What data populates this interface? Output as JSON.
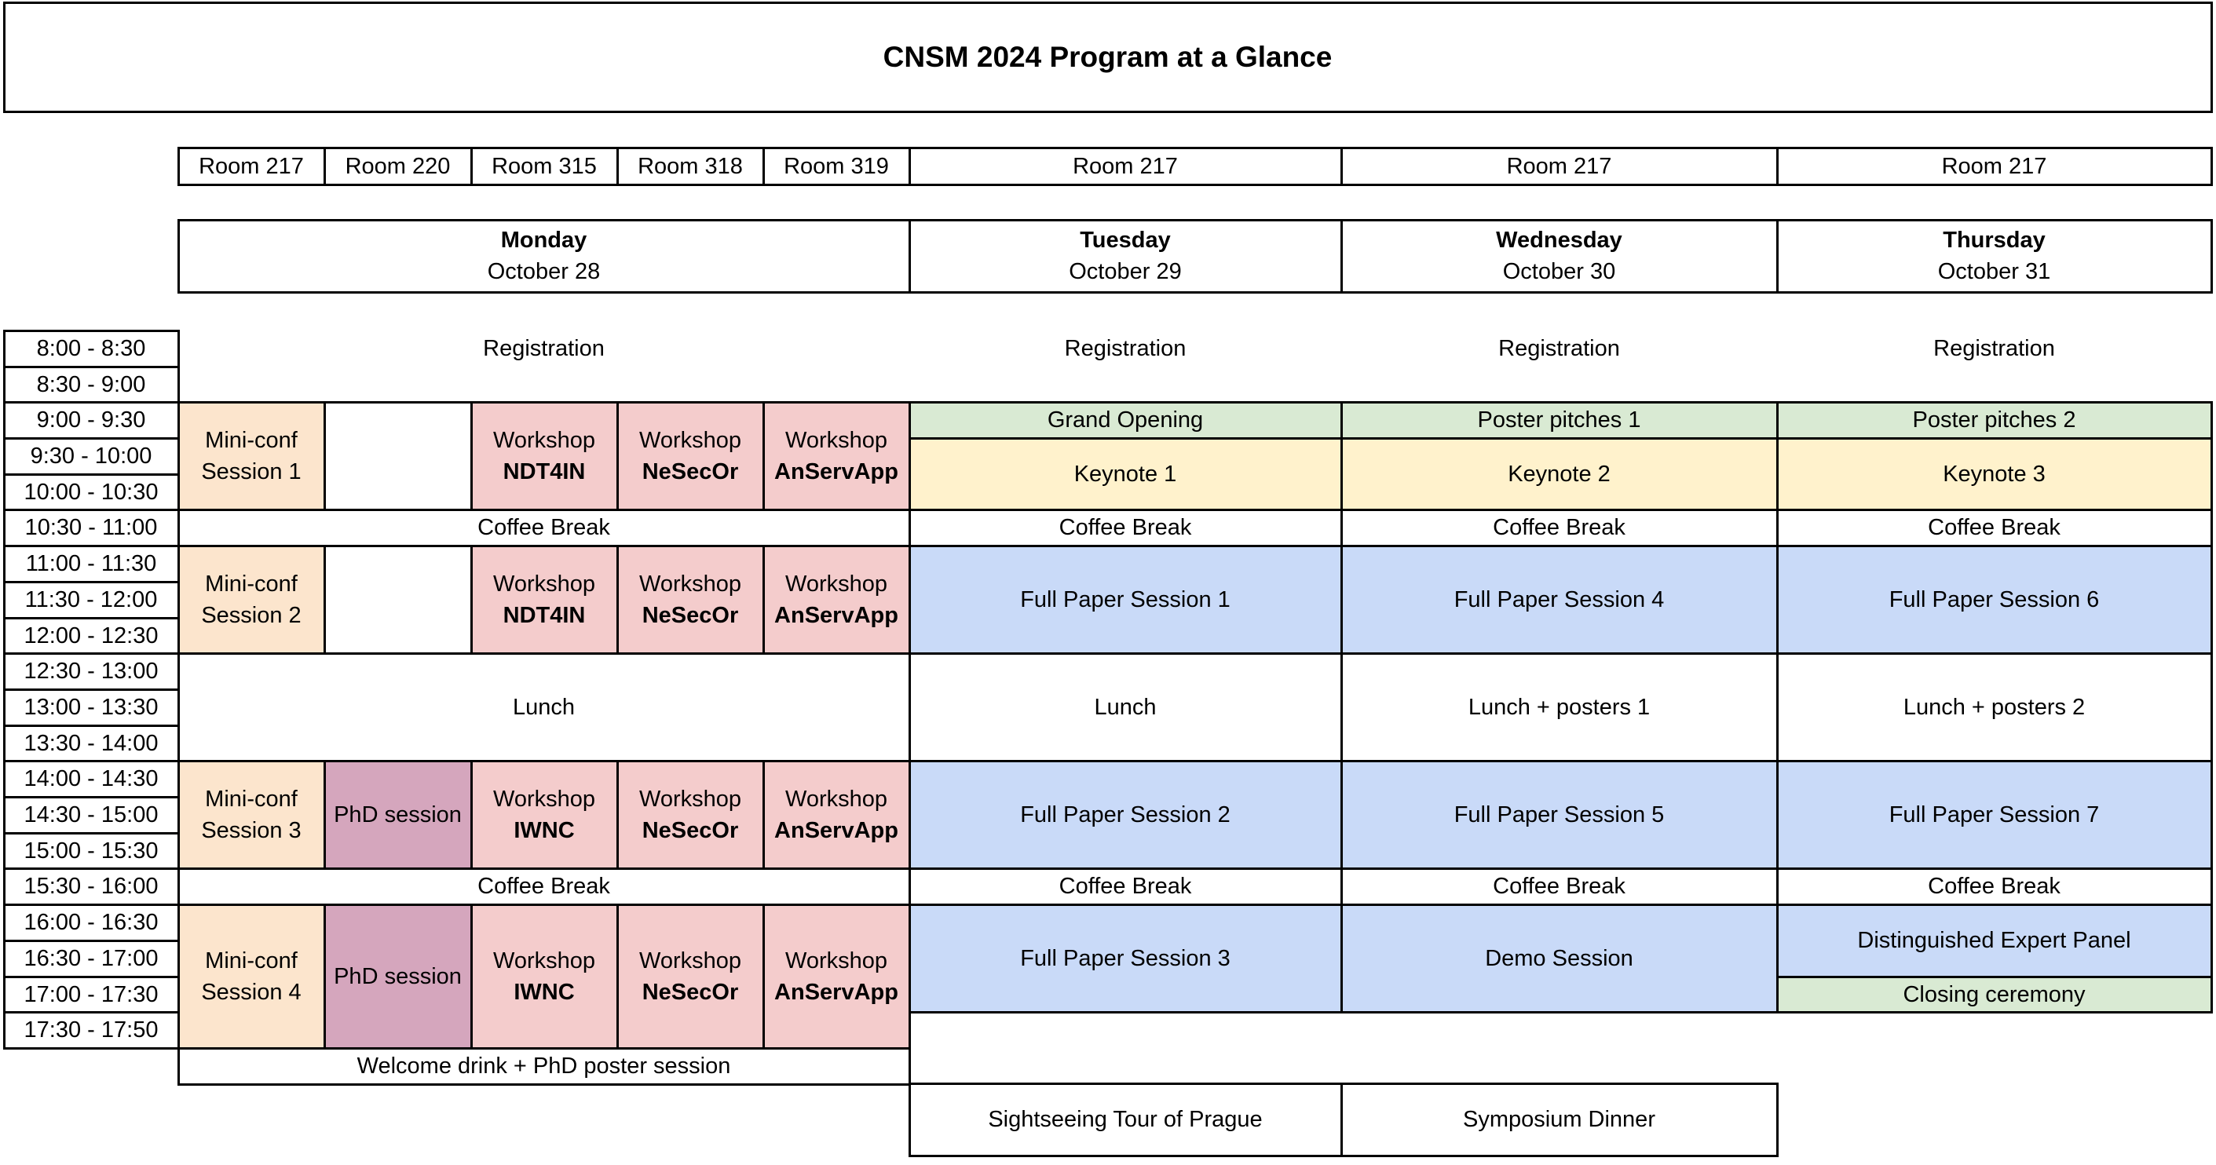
{
  "title": "CNSM 2024 Program at a Glance",
  "colors": {
    "white": "#FFFFFF",
    "orange": "#FCE5CD",
    "pink": "#F4CCCC",
    "purple": "#D5A6BD",
    "green": "#D9EAD3",
    "yellow": "#FFF2CC",
    "blue": "#C9DAF8",
    "border": "#000000",
    "text": "#000000"
  },
  "rooms": [
    {
      "label": "Room 217",
      "col": 0,
      "colspan": 1
    },
    {
      "label": "Room 220",
      "col": 1,
      "colspan": 1
    },
    {
      "label": "Room 315",
      "col": 2,
      "colspan": 1
    },
    {
      "label": "Room 318",
      "col": 3,
      "colspan": 1
    },
    {
      "label": "Room 319",
      "col": 4,
      "colspan": 1
    },
    {
      "label": "Room 217",
      "col": 5,
      "colspan": 1
    },
    {
      "label": "Room 217",
      "col": 6,
      "colspan": 1
    },
    {
      "label": "Room 217",
      "col": 7,
      "colspan": 1
    }
  ],
  "days": [
    {
      "name": "Monday",
      "date": "October 28",
      "col": 0,
      "colspan": 5
    },
    {
      "name": "Tuesday",
      "date": "October 29",
      "col": 5,
      "colspan": 1
    },
    {
      "name": "Wednesday",
      "date": "October 30",
      "col": 6,
      "colspan": 1
    },
    {
      "name": "Thursday",
      "date": "October 31",
      "col": 7,
      "colspan": 1
    }
  ],
  "time_slots": [
    "8:00 - 8:30",
    "8:30 - 9:00",
    "9:00 - 9:30",
    "9:30 - 10:00",
    "10:00 - 10:30",
    "10:30 - 11:00",
    "11:00 - 11:30",
    "11:30 - 12:00",
    "12:00 - 12:30",
    "12:30 - 13:00",
    "13:00 - 13:30",
    "13:30 - 14:00",
    "14:00 - 14:30",
    "14:30 - 15:00",
    "15:00 - 15:30",
    "15:30 - 16:00",
    "16:00 - 16:30",
    "16:30 - 17:00",
    "17:00 - 17:30",
    "17:30 - 17:50"
  ],
  "cells": [
    {
      "name": "registration-monday",
      "col": 0,
      "colspan": 5,
      "row": 0,
      "rowspan": 1,
      "bg": "white",
      "borderless": true,
      "lines": [
        {
          "t": "Registration"
        }
      ]
    },
    {
      "name": "mini-conf-session-1",
      "col": 0,
      "colspan": 1,
      "row": 2,
      "rowspan": 3,
      "bg": "orange",
      "lines": [
        {
          "t": "Mini-conf"
        },
        {
          "t": "Session 1"
        }
      ]
    },
    {
      "name": "empty-room220-morning",
      "col": 1,
      "colspan": 1,
      "row": 2,
      "rowspan": 3,
      "bg": "white",
      "lines": []
    },
    {
      "name": "workshop-ndt4in-morning",
      "col": 2,
      "colspan": 1,
      "row": 2,
      "rowspan": 3,
      "bg": "pink",
      "lines": [
        {
          "t": "Workshop"
        },
        {
          "t": "NDT4IN",
          "b": true
        }
      ]
    },
    {
      "name": "workshop-nesecor-morning",
      "col": 3,
      "colspan": 1,
      "row": 2,
      "rowspan": 3,
      "bg": "pink",
      "lines": [
        {
          "t": "Workshop"
        },
        {
          "t": "NeSecOr",
          "b": true
        }
      ]
    },
    {
      "name": "workshop-anservapp-morning",
      "col": 4,
      "colspan": 1,
      "row": 2,
      "rowspan": 3,
      "bg": "pink",
      "lines": [
        {
          "t": "Workshop"
        },
        {
          "t": "AnServApp",
          "b": true
        }
      ]
    },
    {
      "name": "coffee-break-monday-am",
      "col": 0,
      "colspan": 5,
      "row": 5,
      "rowspan": 1,
      "bg": "white",
      "lines": [
        {
          "t": "Coffee Break"
        }
      ]
    },
    {
      "name": "mini-conf-session-2",
      "col": 0,
      "colspan": 1,
      "row": 6,
      "rowspan": 3,
      "bg": "orange",
      "lines": [
        {
          "t": "Mini-conf"
        },
        {
          "t": "Session 2"
        }
      ]
    },
    {
      "name": "empty-room220-midday",
      "col": 1,
      "colspan": 1,
      "row": 6,
      "rowspan": 3,
      "bg": "white",
      "lines": []
    },
    {
      "name": "workshop-ndt4in-midday",
      "col": 2,
      "colspan": 1,
      "row": 6,
      "rowspan": 3,
      "bg": "pink",
      "lines": [
        {
          "t": "Workshop"
        },
        {
          "t": "NDT4IN",
          "b": true
        }
      ]
    },
    {
      "name": "workshop-nesecor-midday",
      "col": 3,
      "colspan": 1,
      "row": 6,
      "rowspan": 3,
      "bg": "pink",
      "lines": [
        {
          "t": "Workshop"
        },
        {
          "t": "NeSecOr",
          "b": true
        }
      ]
    },
    {
      "name": "workshop-anservapp-midday",
      "col": 4,
      "colspan": 1,
      "row": 6,
      "rowspan": 3,
      "bg": "pink",
      "lines": [
        {
          "t": "Workshop"
        },
        {
          "t": "AnServApp",
          "b": true
        }
      ]
    },
    {
      "name": "lunch-monday",
      "col": 0,
      "colspan": 5,
      "row": 9,
      "rowspan": 3,
      "bg": "white",
      "lines": [
        {
          "t": "Lunch"
        }
      ]
    },
    {
      "name": "mini-conf-session-3",
      "col": 0,
      "colspan": 1,
      "row": 12,
      "rowspan": 3,
      "bg": "orange",
      "lines": [
        {
          "t": "Mini-conf"
        },
        {
          "t": "Session 3"
        }
      ]
    },
    {
      "name": "phd-session-afternoon",
      "col": 1,
      "colspan": 1,
      "row": 12,
      "rowspan": 3,
      "bg": "purple",
      "lines": [
        {
          "t": "PhD session"
        }
      ]
    },
    {
      "name": "workshop-iwnc-afternoon",
      "col": 2,
      "colspan": 1,
      "row": 12,
      "rowspan": 3,
      "bg": "pink",
      "lines": [
        {
          "t": "Workshop"
        },
        {
          "t": "IWNC",
          "b": true
        }
      ]
    },
    {
      "name": "workshop-nesecor-afternoon",
      "col": 3,
      "colspan": 1,
      "row": 12,
      "rowspan": 3,
      "bg": "pink",
      "lines": [
        {
          "t": "Workshop"
        },
        {
          "t": "NeSecOr",
          "b": true
        }
      ]
    },
    {
      "name": "workshop-anservapp-afternoon",
      "col": 4,
      "colspan": 1,
      "row": 12,
      "rowspan": 3,
      "bg": "pink",
      "lines": [
        {
          "t": "Workshop"
        },
        {
          "t": "AnServApp",
          "b": true
        }
      ]
    },
    {
      "name": "coffee-break-monday-pm",
      "col": 0,
      "colspan": 5,
      "row": 15,
      "rowspan": 1,
      "bg": "white",
      "lines": [
        {
          "t": "Coffee Break"
        }
      ]
    },
    {
      "name": "mini-conf-session-4",
      "col": 0,
      "colspan": 1,
      "row": 16,
      "rowspan": 4,
      "bg": "orange",
      "lines": [
        {
          "t": "Mini-conf"
        },
        {
          "t": "Session 4"
        }
      ]
    },
    {
      "name": "phd-session-evening",
      "col": 1,
      "colspan": 1,
      "row": 16,
      "rowspan": 4,
      "bg": "purple",
      "lines": [
        {
          "t": "PhD session"
        }
      ]
    },
    {
      "name": "workshop-iwnc-evening",
      "col": 2,
      "colspan": 1,
      "row": 16,
      "rowspan": 4,
      "bg": "pink",
      "lines": [
        {
          "t": "Workshop"
        },
        {
          "t": "IWNC",
          "b": true
        }
      ]
    },
    {
      "name": "workshop-nesecor-evening",
      "col": 3,
      "colspan": 1,
      "row": 16,
      "rowspan": 4,
      "bg": "pink",
      "lines": [
        {
          "t": "Workshop"
        },
        {
          "t": "NeSecOr",
          "b": true
        }
      ]
    },
    {
      "name": "workshop-anservapp-evening",
      "col": 4,
      "colspan": 1,
      "row": 16,
      "rowspan": 4,
      "bg": "pink",
      "lines": [
        {
          "t": "Workshop"
        },
        {
          "t": "AnServApp",
          "b": true
        }
      ]
    },
    {
      "name": "welcome-drink-phd-poster-session",
      "col": 0,
      "colspan": 5,
      "row": "welcome",
      "bg": "white",
      "lines": [
        {
          "t": "Welcome drink + PhD poster session"
        }
      ]
    },
    {
      "name": "registration-tuesday",
      "col": 5,
      "colspan": 1,
      "row": 0,
      "rowspan": 1,
      "bg": "white",
      "borderless": true,
      "lines": [
        {
          "t": "Registration"
        }
      ]
    },
    {
      "name": "grand-opening",
      "col": 5,
      "colspan": 1,
      "row": 2,
      "rowspan": 1,
      "bg": "green",
      "lines": [
        {
          "t": "Grand Opening"
        }
      ]
    },
    {
      "name": "keynote-1",
      "col": 5,
      "colspan": 1,
      "row": 3,
      "rowspan": 2,
      "bg": "yellow",
      "lines": [
        {
          "t": "Keynote 1"
        }
      ]
    },
    {
      "name": "coffee-break-tuesday-am",
      "col": 5,
      "colspan": 1,
      "row": 5,
      "rowspan": 1,
      "bg": "white",
      "lines": [
        {
          "t": "Coffee Break"
        }
      ]
    },
    {
      "name": "full-paper-session-1",
      "col": 5,
      "colspan": 1,
      "row": 6,
      "rowspan": 3,
      "bg": "blue",
      "lines": [
        {
          "t": "Full Paper Session 1"
        }
      ]
    },
    {
      "name": "lunch-tuesday",
      "col": 5,
      "colspan": 1,
      "row": 9,
      "rowspan": 3,
      "bg": "white",
      "lines": [
        {
          "t": "Lunch"
        }
      ]
    },
    {
      "name": "full-paper-session-2",
      "col": 5,
      "colspan": 1,
      "row": 12,
      "rowspan": 3,
      "bg": "blue",
      "lines": [
        {
          "t": "Full Paper Session 2"
        }
      ]
    },
    {
      "name": "coffee-break-tuesday-pm",
      "col": 5,
      "colspan": 1,
      "row": 15,
      "rowspan": 1,
      "bg": "white",
      "lines": [
        {
          "t": "Coffee Break"
        }
      ]
    },
    {
      "name": "full-paper-session-3",
      "col": 5,
      "colspan": 1,
      "row": 16,
      "rowspan": 3,
      "bg": "blue",
      "lines": [
        {
          "t": "Full Paper Session 3"
        }
      ]
    },
    {
      "name": "sightseeing-tour-of-prague",
      "col": 5,
      "colspan": 1,
      "row": "evening",
      "bg": "white",
      "lines": [
        {
          "t": "Sightseeing Tour of Prague"
        }
      ]
    },
    {
      "name": "registration-wednesday",
      "col": 6,
      "colspan": 1,
      "row": 0,
      "rowspan": 1,
      "bg": "white",
      "borderless": true,
      "lines": [
        {
          "t": "Registration"
        }
      ]
    },
    {
      "name": "poster-pitches-1",
      "col": 6,
      "colspan": 1,
      "row": 2,
      "rowspan": 1,
      "bg": "green",
      "lines": [
        {
          "t": "Poster pitches 1"
        }
      ]
    },
    {
      "name": "keynote-2",
      "col": 6,
      "colspan": 1,
      "row": 3,
      "rowspan": 2,
      "bg": "yellow",
      "lines": [
        {
          "t": "Keynote 2"
        }
      ]
    },
    {
      "name": "coffee-break-wednesday-am",
      "col": 6,
      "colspan": 1,
      "row": 5,
      "rowspan": 1,
      "bg": "white",
      "lines": [
        {
          "t": "Coffee Break"
        }
      ]
    },
    {
      "name": "full-paper-session-4",
      "col": 6,
      "colspan": 1,
      "row": 6,
      "rowspan": 3,
      "bg": "blue",
      "lines": [
        {
          "t": "Full Paper Session 4"
        }
      ]
    },
    {
      "name": "lunch-posters-1",
      "col": 6,
      "colspan": 1,
      "row": 9,
      "rowspan": 3,
      "bg": "white",
      "lines": [
        {
          "t": "Lunch + posters 1"
        }
      ]
    },
    {
      "name": "full-paper-session-5",
      "col": 6,
      "colspan": 1,
      "row": 12,
      "rowspan": 3,
      "bg": "blue",
      "lines": [
        {
          "t": "Full Paper Session 5"
        }
      ]
    },
    {
      "name": "coffee-break-wednesday-pm",
      "col": 6,
      "colspan": 1,
      "row": 15,
      "rowspan": 1,
      "bg": "white",
      "lines": [
        {
          "t": "Coffee Break"
        }
      ]
    },
    {
      "name": "demo-session",
      "col": 6,
      "colspan": 1,
      "row": 16,
      "rowspan": 3,
      "bg": "blue",
      "lines": [
        {
          "t": "Demo Session"
        }
      ]
    },
    {
      "name": "symposium-dinner",
      "col": 6,
      "colspan": 1,
      "row": "evening",
      "bg": "white",
      "lines": [
        {
          "t": "Symposium Dinner"
        }
      ]
    },
    {
      "name": "registration-thursday",
      "col": 7,
      "colspan": 1,
      "row": 0,
      "rowspan": 1,
      "bg": "white",
      "borderless": true,
      "lines": [
        {
          "t": "Registration"
        }
      ]
    },
    {
      "name": "poster-pitches-2",
      "col": 7,
      "colspan": 1,
      "row": 2,
      "rowspan": 1,
      "bg": "green",
      "lines": [
        {
          "t": "Poster pitches 2"
        }
      ]
    },
    {
      "name": "keynote-3",
      "col": 7,
      "colspan": 1,
      "row": 3,
      "rowspan": 2,
      "bg": "yellow",
      "lines": [
        {
          "t": "Keynote 3"
        }
      ]
    },
    {
      "name": "coffee-break-thursday-am",
      "col": 7,
      "colspan": 1,
      "row": 5,
      "rowspan": 1,
      "bg": "white",
      "lines": [
        {
          "t": "Coffee Break"
        }
      ]
    },
    {
      "name": "full-paper-session-6",
      "col": 7,
      "colspan": 1,
      "row": 6,
      "rowspan": 3,
      "bg": "blue",
      "lines": [
        {
          "t": "Full Paper Session 6"
        }
      ]
    },
    {
      "name": "lunch-posters-2",
      "col": 7,
      "colspan": 1,
      "row": 9,
      "rowspan": 3,
      "bg": "white",
      "lines": [
        {
          "t": "Lunch + posters 2"
        }
      ]
    },
    {
      "name": "full-paper-session-7",
      "col": 7,
      "colspan": 1,
      "row": 12,
      "rowspan": 3,
      "bg": "blue",
      "lines": [
        {
          "t": "Full Paper Session 7"
        }
      ]
    },
    {
      "name": "coffee-break-thursday-pm",
      "col": 7,
      "colspan": 1,
      "row": 15,
      "rowspan": 1,
      "bg": "white",
      "lines": [
        {
          "t": "Coffee Break"
        }
      ]
    },
    {
      "name": "distinguished-expert-panel",
      "col": 7,
      "colspan": 1,
      "row": 16,
      "rowspan": 2,
      "bg": "blue",
      "lines": [
        {
          "t": "Distinguished Expert Panel"
        }
      ]
    },
    {
      "name": "closing-ceremony",
      "col": 7,
      "colspan": 1,
      "row": 18,
      "rowspan": 1,
      "bg": "green",
      "lines": [
        {
          "t": "Closing ceremony"
        }
      ]
    }
  ]
}
